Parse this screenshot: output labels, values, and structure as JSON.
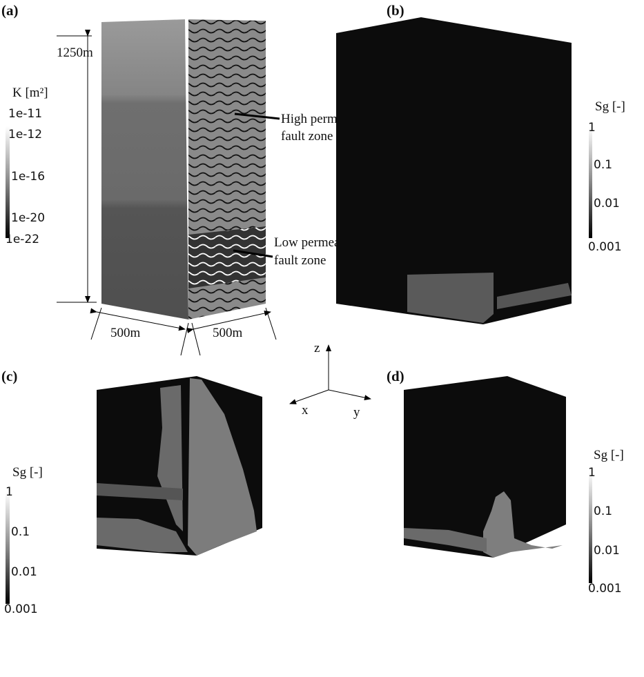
{
  "panels": [
    {
      "label": "(a)",
      "height_label": "1250m",
      "colorbar": {
        "title": "K [m²]",
        "ticks": [
          "1e-11",
          "1e-12",
          "1e-16",
          "1e-20",
          "1e-22"
        ]
      },
      "width_labels": [
        "500m",
        "500m"
      ],
      "annotations": [
        [
          "High permeable",
          "fault zone"
        ],
        [
          "Low permeable",
          "fault zone"
        ]
      ]
    },
    {
      "label": "(b)",
      "colorbar": {
        "title": "Sg [-]",
        "ticks": [
          "1",
          "0.1",
          "0.01",
          "0.001"
        ]
      }
    },
    {
      "label": "(c)",
      "colorbar": {
        "title": "Sg [-]",
        "ticks": [
          "1",
          "0.1",
          "0.01",
          "0.001"
        ]
      }
    },
    {
      "label": "(d)",
      "colorbar": {
        "title": "Sg [-]",
        "ticks": [
          "1",
          "0.1",
          "0.01",
          "0.001"
        ]
      }
    }
  ],
  "axes": {
    "z": "z",
    "x": "x",
    "y": "y"
  }
}
